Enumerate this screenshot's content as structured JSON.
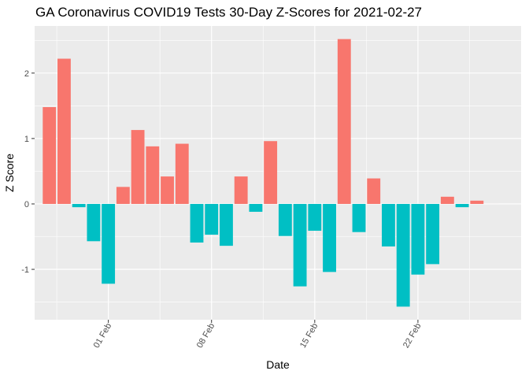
{
  "chart_data": {
    "type": "bar",
    "title": "GA Coronavirus COVID19 Tests 30-Day Z-Scores for 2021-02-27",
    "xlabel": "Date",
    "ylabel": "Z Score",
    "x": [
      "2021-01-28",
      "2021-01-29",
      "2021-01-30",
      "2021-01-31",
      "2021-02-01",
      "2021-02-02",
      "2021-02-03",
      "2021-02-04",
      "2021-02-05",
      "2021-02-06",
      "2021-02-07",
      "2021-02-08",
      "2021-02-09",
      "2021-02-10",
      "2021-02-11",
      "2021-02-12",
      "2021-02-13",
      "2021-02-14",
      "2021-02-15",
      "2021-02-16",
      "2021-02-17",
      "2021-02-18",
      "2021-02-19",
      "2021-02-20",
      "2021-02-21",
      "2021-02-22",
      "2021-02-23",
      "2021-02-24",
      "2021-02-25",
      "2021-02-26",
      "2021-02-27"
    ],
    "values": [
      1.48,
      2.22,
      -0.05,
      -0.57,
      -1.22,
      0.26,
      1.13,
      0.88,
      0.42,
      0.92,
      -0.59,
      -0.47,
      -0.64,
      0.42,
      -0.12,
      0.96,
      -0.49,
      -1.26,
      -0.41,
      -1.04,
      2.52,
      -0.43,
      0.39,
      -0.65,
      -1.57,
      -1.08,
      -0.92,
      0.11,
      -0.05,
      0.05,
      0
    ],
    "x_ticks": [
      "01 Feb",
      "08 Feb",
      "15 Feb",
      "22 Feb"
    ],
    "x_tick_dates": [
      "2021-02-01",
      "2021-02-08",
      "2021-02-15",
      "2021-02-22"
    ],
    "y_ticks": [
      -1,
      0,
      1,
      2
    ],
    "ylim": [
      -1.77,
      2.72
    ],
    "xlim": [
      "2021-01-27",
      "2021-03-01"
    ],
    "grid": true,
    "colors": {
      "positive": "#F8766D",
      "negative": "#00BFC4",
      "panel": "#EBEBEB",
      "grid_major": "#FFFFFF",
      "tick_text": "#4D4D4D",
      "tick_mark": "#333333"
    }
  }
}
